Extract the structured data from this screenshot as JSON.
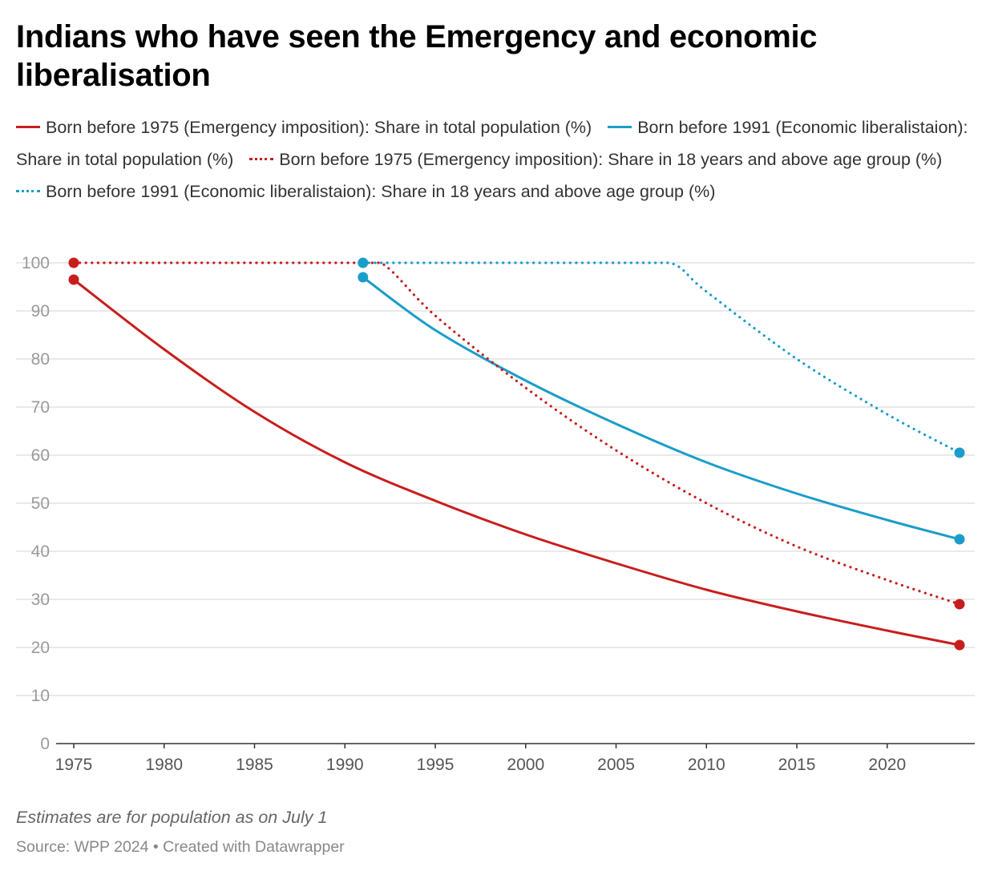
{
  "title": "Indians who have seen the Emergency and economic liberalisation",
  "colors": {
    "red": "#c71e1d",
    "blue": "#1b9dc9",
    "grid": "#e2e2e2",
    "axis": "#333333"
  },
  "legend": [
    {
      "label": "Born before 1975 (Emergency imposition): Share in total population (%)",
      "color": "#c71e1d",
      "style": "solid"
    },
    {
      "label": "Born before 1991 (Economic liberalistaion): Share in total population (%)",
      "color": "#1b9dc9",
      "style": "solid"
    },
    {
      "label": "Born before 1975 (Emergency imposition): Share in 18 years and above age group (%)",
      "color": "#c71e1d",
      "style": "dotted"
    },
    {
      "label": "Born before 1991 (Economic liberalistaion): Share in 18 years and above age group (%)",
      "color": "#1b9dc9",
      "style": "dotted"
    }
  ],
  "chart_data": {
    "type": "line",
    "title": "Indians who have seen the Emergency and economic liberalisation",
    "xlabel": "",
    "ylabel": "",
    "xlim": [
      1975,
      2024
    ],
    "ylim": [
      0,
      100
    ],
    "x_ticks": [
      1975,
      1980,
      1985,
      1990,
      1995,
      2000,
      2005,
      2010,
      2015,
      2020
    ],
    "y_ticks": [
      0,
      10,
      20,
      30,
      40,
      50,
      60,
      70,
      80,
      90,
      100
    ],
    "grid": true,
    "legend_position": "top",
    "series": [
      {
        "name": "Born before 1975 (Emergency imposition): Share in total population (%)",
        "color": "#c71e1d",
        "style": "solid",
        "x": [
          1975,
          1980,
          1985,
          1990,
          1995,
          2000,
          2005,
          2010,
          2015,
          2020,
          2024
        ],
        "y": [
          96.5,
          82,
          69,
          58.5,
          50.5,
          43.5,
          37.5,
          32,
          27.5,
          23.5,
          20.5
        ]
      },
      {
        "name": "Born before 1991 (Economic liberalistaion): Share in total population (%)",
        "color": "#1b9dc9",
        "style": "solid",
        "x": [
          1991,
          1995,
          2000,
          2005,
          2010,
          2015,
          2020,
          2024
        ],
        "y": [
          97,
          86,
          75.5,
          66.5,
          58.5,
          52,
          46.5,
          42.5
        ]
      },
      {
        "name": "Born before 1975 (Emergency imposition): Share in 18 years and above age group (%)",
        "color": "#c71e1d",
        "style": "dotted",
        "x": [
          1975,
          1980,
          1985,
          1990,
          1992,
          1995,
          2000,
          2005,
          2010,
          2015,
          2020,
          2024
        ],
        "y": [
          100,
          100,
          100,
          100,
          100,
          89,
          74,
          61,
          50,
          41,
          34,
          29
        ]
      },
      {
        "name": "Born before 1991 (Economic liberalistaion): Share in 18 years and above age group (%)",
        "color": "#1b9dc9",
        "style": "dotted",
        "x": [
          1991,
          1995,
          2000,
          2005,
          2008,
          2010,
          2015,
          2020,
          2024
        ],
        "y": [
          100,
          100,
          100,
          100,
          100,
          94,
          80,
          68.5,
          60.5
        ]
      }
    ],
    "markers": [
      {
        "x": 1975,
        "y": 100,
        "color": "#c71e1d"
      },
      {
        "x": 1975,
        "y": 96.5,
        "color": "#c71e1d"
      },
      {
        "x": 2024,
        "y": 29,
        "color": "#c71e1d"
      },
      {
        "x": 2024,
        "y": 20.5,
        "color": "#c71e1d"
      },
      {
        "x": 1991,
        "y": 100,
        "color": "#1b9dc9"
      },
      {
        "x": 1991,
        "y": 97,
        "color": "#1b9dc9"
      },
      {
        "x": 2024,
        "y": 60.5,
        "color": "#1b9dc9"
      },
      {
        "x": 2024,
        "y": 42.5,
        "color": "#1b9dc9"
      }
    ]
  },
  "note": "Estimates are for population as on July 1",
  "source": "Source: WPP 2024 • Created with Datawrapper"
}
